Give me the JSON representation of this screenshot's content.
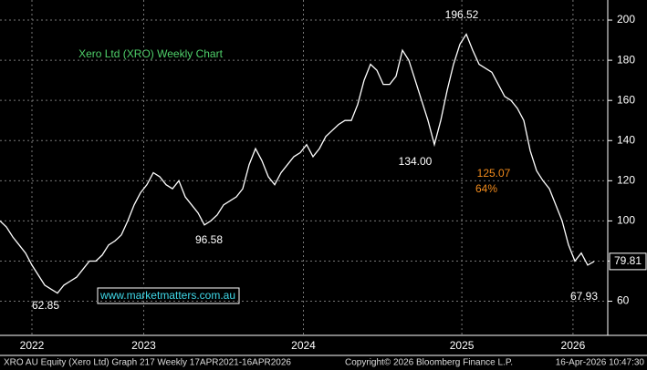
{
  "chart_data": {
    "type": "line",
    "title": "Xero Ltd (XRO) Weekly Chart",
    "color": "#ffffff",
    "values": [
      100,
      97,
      92,
      88,
      84,
      78,
      73,
      68,
      66,
      64,
      68,
      70,
      72,
      76,
      80,
      80,
      83,
      88,
      90,
      93,
      100,
      108,
      114,
      118,
      124,
      122,
      118,
      116,
      120,
      112,
      108,
      104,
      98,
      100,
      103,
      108,
      110,
      112,
      116,
      128,
      136,
      130,
      122,
      118,
      124,
      128,
      132,
      134,
      138,
      132,
      136,
      142,
      145,
      148,
      150,
      150,
      158,
      170,
      178,
      175,
      168,
      168,
      172,
      185,
      180,
      170,
      160,
      150,
      138,
      150,
      165,
      178,
      188,
      193,
      185,
      178,
      176,
      174,
      168,
      162,
      160,
      156,
      150,
      135,
      125,
      120,
      116,
      108,
      100,
      88,
      80,
      84,
      78,
      79.81
    ],
    "xlim": [
      0,
      95
    ],
    "xticks": [
      {
        "value": 5,
        "label": "2022"
      },
      {
        "value": 22.5,
        "label": "2023"
      },
      {
        "value": 47.5,
        "label": "2024"
      },
      {
        "value": 72.3,
        "label": "2025"
      },
      {
        "value": 89.7,
        "label": "2026"
      }
    ],
    "ylim": [
      43,
      210
    ],
    "yticks": [
      60,
      80,
      100,
      120,
      140,
      160,
      180,
      200
    ],
    "grid": true,
    "annotations": [
      "196.52",
      "134.00",
      "96.58",
      "62.85",
      "125.07",
      "64%",
      "67.93"
    ],
    "last_price": 79.81,
    "watermark": "www.marketmatters.com.au",
    "footer": [
      "XRO AU Equity (Xero Ltd) Graph 217 Weekly 17APR2021-16APR2026",
      "Copyright© 2026 Bloomberg Finance L.P.",
      "16-Apr-2026 10:47:30"
    ]
  }
}
